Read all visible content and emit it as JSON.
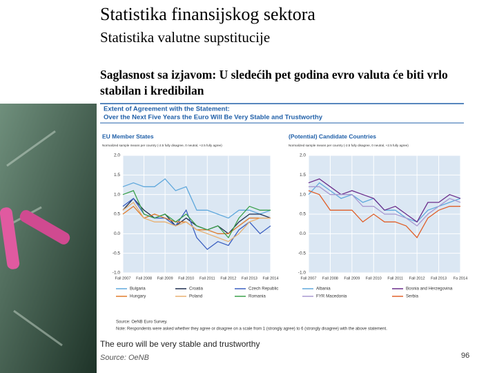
{
  "slide": {
    "title": "Statistika finansijskog sektora",
    "subtitle": "Statistika valutne supstitucije",
    "statement": "Saglasnost sa izjavom: U sledećih pet godina evro valuta će biti vrlo stabilan i kredibilan",
    "caption": "The euro will be very stable and trustworthy",
    "source": "Source: OeNB",
    "page": "96"
  },
  "figure": {
    "title_lines": [
      "Extent of Agreement with the Statement:",
      "Over the Next Five Years the Euro Will Be Very Stable and Trustworthy"
    ],
    "source": "Source: OeNB Euro Survey.",
    "note": "Note: Respondents were asked whether they agree or disagree on a scale from 1 (strongly agree) to 6 (strongly disagree) with the above statement."
  },
  "chart_data": [
    {
      "type": "line",
      "title": "EU Member States",
      "subtitle": "Normalized sample means per country (-2.5 fully disagree, 0 neutral, +2.5 fully agree)",
      "categories": [
        "Fall 2007",
        null,
        "Fall 2008",
        null,
        "Fall 2009",
        null,
        "Fall 2010",
        null,
        "Fall 2011",
        null,
        "Fall 2012",
        null,
        "Fall 2013",
        null,
        "Fall 2014"
      ],
      "ylim": [
        -1,
        2
      ],
      "yticks": [
        {
          "value": -1,
          "label": "-1.0"
        },
        {
          "value": -0.5,
          "label": "-0.5"
        },
        {
          "value": 0,
          "label": "0.0"
        },
        {
          "value": 0.5,
          "label": "0.5"
        },
        {
          "value": 1,
          "label": "1.0"
        },
        {
          "value": 1.5,
          "label": "1.5"
        },
        {
          "value": 2,
          "label": "2.0"
        }
      ],
      "grid": true,
      "series": [
        {
          "name": "Bulgaria",
          "color": "#5fa8dc",
          "values": [
            1.2,
            1.3,
            1.2,
            1.2,
            1.4,
            1.1,
            1.2,
            0.6,
            0.6,
            0.5,
            0.4,
            0.6,
            0.6,
            0.5,
            0.6
          ]
        },
        {
          "name": "Croatia",
          "color": "#1f2d4f",
          "values": [
            0.6,
            0.9,
            0.6,
            0.4,
            0.5,
            0.2,
            0.4,
            0.2,
            0.1,
            0.2,
            0.0,
            0.3,
            0.5,
            0.5,
            0.4
          ]
        },
        {
          "name": "Czech Republic",
          "color": "#3b5fc0",
          "values": [
            0.7,
            0.9,
            0.5,
            0.4,
            0.4,
            0.2,
            0.6,
            -0.1,
            -0.4,
            -0.2,
            -0.3,
            0.1,
            0.3,
            0.0,
            0.2
          ]
        },
        {
          "name": "Hungary",
          "color": "#e07b2a",
          "values": [
            0.5,
            0.7,
            0.4,
            0.5,
            0.4,
            0.3,
            0.3,
            0.1,
            0.1,
            0.0,
            0.0,
            0.2,
            0.4,
            0.4,
            0.4
          ]
        },
        {
          "name": "Poland",
          "color": "#e8b070",
          "values": [
            0.6,
            0.8,
            0.4,
            0.3,
            0.3,
            0.2,
            0.3,
            0.1,
            0.0,
            -0.1,
            -0.2,
            0.0,
            0.3,
            0.4,
            0.4
          ]
        },
        {
          "name": "Romania",
          "color": "#3aa04a",
          "values": [
            1.0,
            1.1,
            0.5,
            0.4,
            0.5,
            0.3,
            0.5,
            0.2,
            0.1,
            0.2,
            -0.1,
            0.4,
            0.7,
            0.6,
            0.6
          ]
        }
      ]
    },
    {
      "type": "line",
      "title": "(Potential) Candidate Countries",
      "subtitle": "Normalized sample means per country (-2.5 fully disagree, 0 neutral, +2.5 fully agree)",
      "categories": [
        "Fall 2007",
        null,
        "Fall 2008",
        null,
        "Fall 2009",
        null,
        "Fall 2010",
        null,
        "Fall 2011",
        null,
        "Fall 2012",
        null,
        "Fall 2013",
        null,
        "Fa 2014"
      ],
      "ylim": [
        -1,
        2
      ],
      "yticks": [
        {
          "value": -1,
          "label": "-1.0"
        },
        {
          "value": -0.5,
          "label": "-0.5"
        },
        {
          "value": 0,
          "label": "0.0"
        },
        {
          "value": 0.5,
          "label": "0.5"
        },
        {
          "value": 1,
          "label": "1.0"
        },
        {
          "value": 1.5,
          "label": "1.5"
        },
        {
          "value": 2,
          "label": "2.0"
        }
      ],
      "grid": true,
      "series": [
        {
          "name": "Albania",
          "color": "#5fa8dc",
          "values": [
            1.0,
            1.3,
            1.1,
            0.9,
            1.0,
            0.8,
            0.9,
            0.6,
            0.6,
            0.4,
            0.3,
            0.6,
            0.7,
            0.8,
            0.9
          ]
        },
        {
          "name": "Bosnia and Herzegovina",
          "color": "#6a2c8a",
          "values": [
            1.3,
            1.4,
            1.2,
            1.0,
            1.1,
            1.0,
            0.9,
            0.6,
            0.7,
            0.5,
            0.3,
            0.8,
            0.8,
            1.0,
            0.9
          ]
        },
        {
          "name": "FYR Macedonia",
          "color": "#a898d0",
          "values": [
            1.2,
            1.2,
            1.0,
            1.0,
            1.0,
            0.7,
            0.7,
            0.5,
            0.5,
            0.4,
            0.2,
            0.5,
            0.7,
            0.9,
            0.8
          ]
        },
        {
          "name": "Serbia",
          "color": "#e0602a",
          "values": [
            1.1,
            1.0,
            0.6,
            0.6,
            0.6,
            0.3,
            0.5,
            0.3,
            0.3,
            0.2,
            -0.1,
            0.4,
            0.6,
            0.7,
            0.7
          ]
        }
      ]
    }
  ]
}
